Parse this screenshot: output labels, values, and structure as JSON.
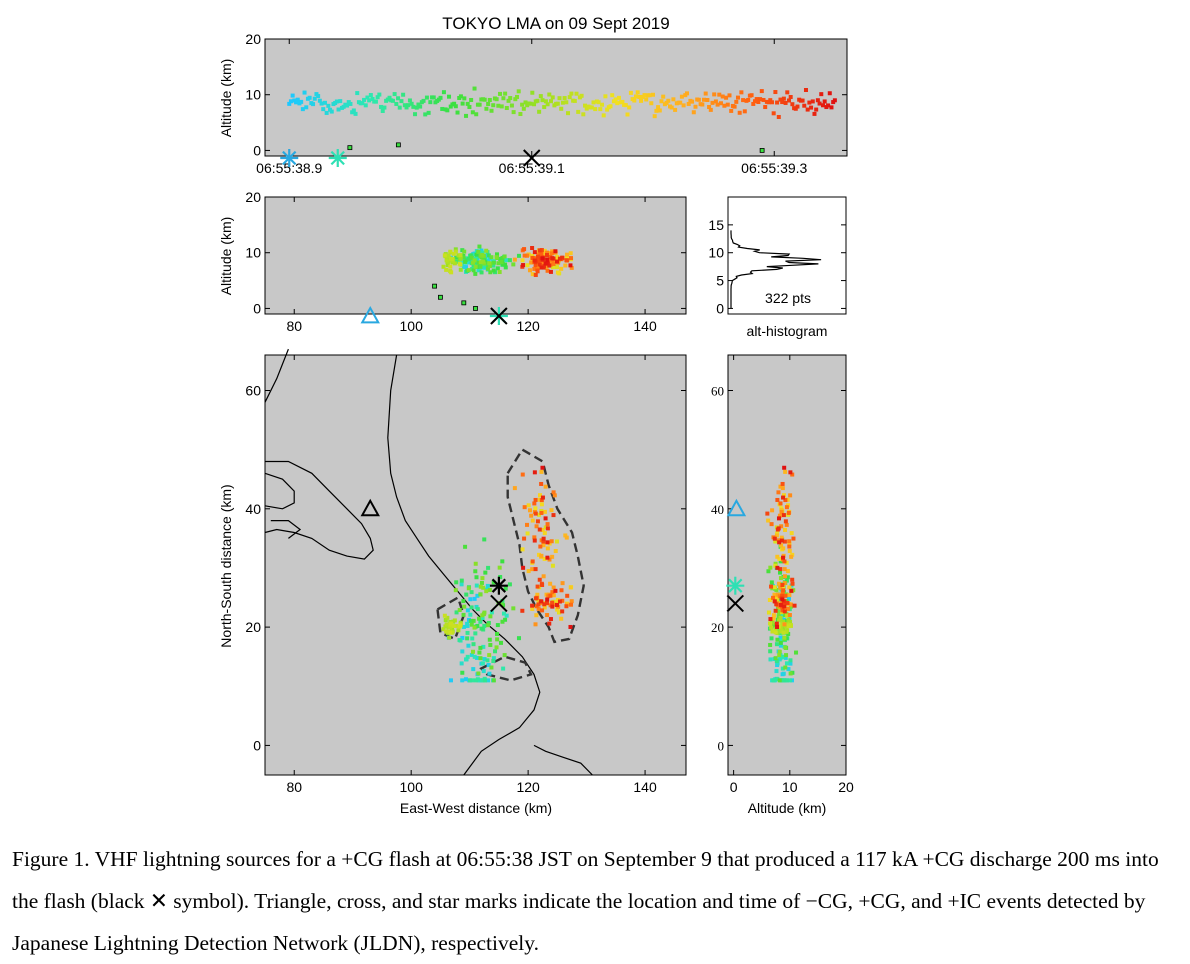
{
  "title": "TOKYO LMA on 09 Sept 2019",
  "caption": "Figure 1. VHF lightning sources for a +CG flash at 06:55:38 JST on September 9 that produced a 117 kA +CG discharge 200 ms into the flash (black ✕ symbol). Triangle, cross, and star marks indicate the location and time of −CG, +CG, and +IC events detected by Japanese Lightning Detection Network (JLDN), respectively.",
  "colors": {
    "background": "#c8c8c8",
    "neg_cg": "#29a8e0",
    "ic_star": "#2ee0b4",
    "pos_cg": "#000000",
    "cloud_outline": "#333333"
  },
  "chart_data": [
    {
      "id": "time-height",
      "type": "scatter",
      "xlabel": "",
      "ylabel": "Altitude (km)",
      "xlim_s": [
        38.88,
        39.36
      ],
      "ylim": [
        -1,
        20
      ],
      "x_ticks": [
        "06:55:38.9",
        "06:55:39.1",
        "06:55:39.3"
      ],
      "x_tick_values": [
        38.9,
        39.1,
        39.3
      ],
      "y_ticks": [
        "0",
        "10",
        "20"
      ],
      "y_tick_values": [
        0,
        10,
        20
      ],
      "markers": [
        {
          "kind": "star",
          "color": "neg_cg",
          "t": 38.9,
          "alt": -1
        },
        {
          "kind": "star",
          "color": "ic_star",
          "t": 38.94,
          "alt": -1
        },
        {
          "kind": "cross",
          "color": "pos_cg",
          "t": 39.1,
          "alt": -1
        }
      ]
    },
    {
      "id": "ew-height",
      "type": "scatter",
      "xlabel": "",
      "ylabel": "Altitude (km)",
      "xlim": [
        75,
        147
      ],
      "ylim": [
        -1,
        20
      ],
      "x_ticks": [
        "80",
        "100",
        "120",
        "140"
      ],
      "x_tick_values": [
        80,
        100,
        120,
        140
      ],
      "y_ticks": [
        "0",
        "10",
        "20"
      ],
      "y_tick_values": [
        0,
        10,
        20
      ],
      "markers": [
        {
          "kind": "triangle",
          "color": "neg_cg",
          "x": 93,
          "alt": -1
        },
        {
          "kind": "star",
          "color": "ic_star",
          "x": 115,
          "alt": -1
        },
        {
          "kind": "cross",
          "color": "pos_cg",
          "x": 115,
          "alt": -1
        }
      ]
    },
    {
      "id": "alt-histogram",
      "type": "line",
      "xlabel": "alt-histogram",
      "annotation": "322 pts",
      "ylim": [
        -1,
        20
      ],
      "y_ticks": [
        "0",
        "5",
        "10",
        "15"
      ],
      "y_tick_values": [
        0,
        5,
        10,
        15
      ],
      "peak_altitude_km": 8.5
    },
    {
      "id": "plan-view",
      "type": "scatter",
      "xlabel": "East-West distance (km)",
      "ylabel": "North-South distance (km)",
      "xlim": [
        75,
        147
      ],
      "ylim": [
        -5,
        66
      ],
      "x_ticks": [
        "80",
        "100",
        "120",
        "140"
      ],
      "x_tick_values": [
        80,
        100,
        120,
        140
      ],
      "y_ticks": [
        "0",
        "20",
        "40",
        "60"
      ],
      "y_tick_values": [
        0,
        20,
        40,
        60
      ],
      "markers": [
        {
          "kind": "triangle",
          "color": "pos_cg",
          "x": 93,
          "y": 40
        },
        {
          "kind": "star",
          "color": "pos_cg",
          "x": 115,
          "y": 27
        },
        {
          "kind": "cross",
          "color": "pos_cg",
          "x": 115,
          "y": 24
        }
      ]
    },
    {
      "id": "ns-height",
      "type": "scatter",
      "xlabel": "Altitude (km)",
      "ylabel": "",
      "xlim": [
        -1,
        20
      ],
      "ylim": [
        -5,
        66
      ],
      "x_ticks": [
        "0",
        "10",
        "20"
      ],
      "x_tick_values": [
        0,
        10,
        20
      ],
      "y_ticks": [
        "0",
        "20",
        "40",
        "60"
      ],
      "y_tick_values": [
        0,
        20,
        40,
        60
      ],
      "markers": [
        {
          "kind": "triangle",
          "color": "neg_cg",
          "alt": 0.5,
          "y": 40
        },
        {
          "kind": "star",
          "color": "ic_star",
          "alt": 0.3,
          "y": 27
        },
        {
          "kind": "cross",
          "color": "pos_cg",
          "alt": 0.3,
          "y": 24
        }
      ]
    }
  ]
}
